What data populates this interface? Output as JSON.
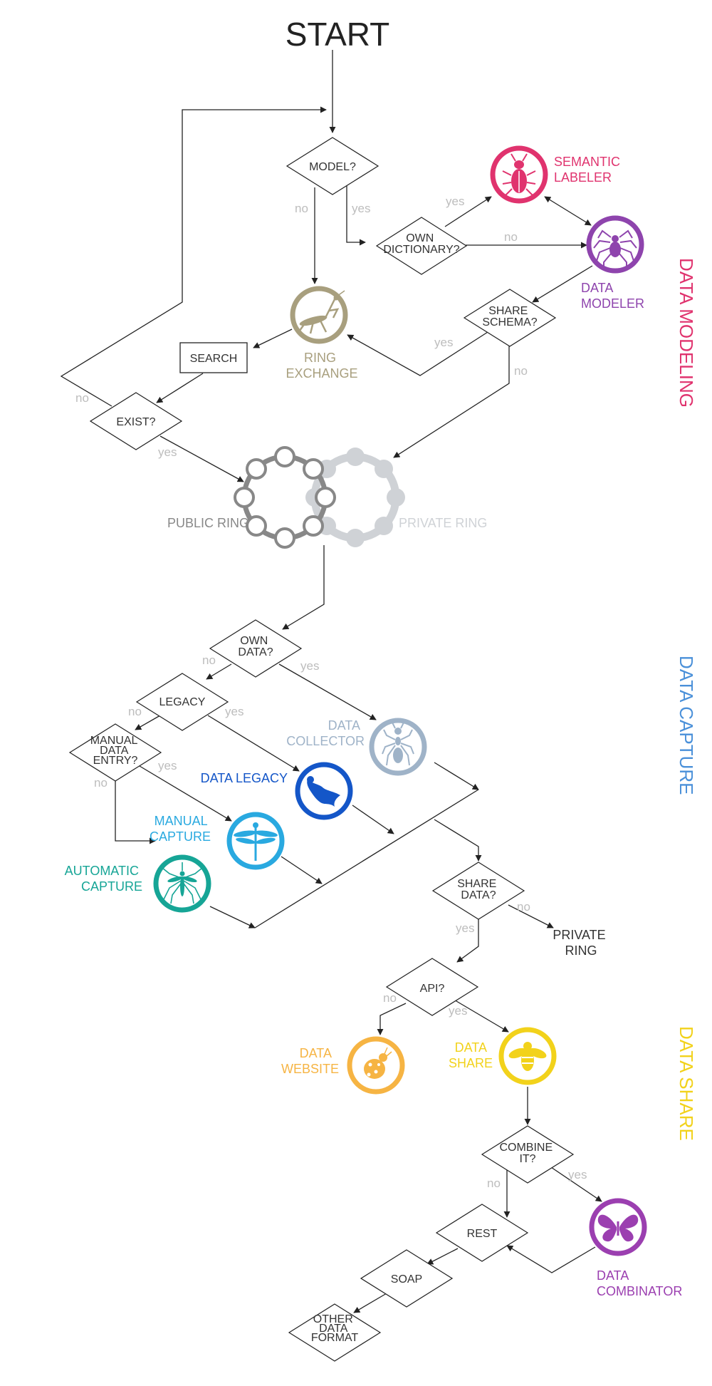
{
  "title": "START",
  "sections": {
    "data_modeling": "DATA MODELING",
    "data_capture": "DATA CAPTURE",
    "data_share": "DATA SHARE"
  },
  "nodes": {
    "model": "MODEL?",
    "own_dictionary": [
      "OWN",
      "DICTIONARY?"
    ],
    "share_schema": [
      "SHARE",
      "SCHEMA?"
    ],
    "search": "SEARCH",
    "exist": "EXIST?",
    "own_data": [
      "OWN",
      "DATA?"
    ],
    "legacy": "LEGACY",
    "manual_data_entry": [
      "MANUAL",
      "DATA",
      "ENTRY?"
    ],
    "share_data": [
      "SHARE",
      "DATA?"
    ],
    "api": "API?",
    "combine_it": [
      "COMBINE",
      "IT?"
    ],
    "rest": "REST",
    "soap": "SOAP",
    "other_data_format": [
      "OTHER",
      "DATA",
      "FORMAT"
    ]
  },
  "roles": {
    "semantic_labeler": {
      "lines": [
        "SEMANTIC",
        "LABELER"
      ],
      "color": "#e0336e",
      "icon": "beetle-icon"
    },
    "data_modeler": {
      "lines": [
        "DATA",
        "MODELER"
      ],
      "color": "#8e44ad",
      "icon": "spider-icon"
    },
    "ring_exchange": {
      "lines": [
        "RING",
        "EXCHANGE"
      ],
      "color": "#a89f7e",
      "icon": "mantis-icon"
    },
    "public_ring": {
      "lines": [
        "PUBLIC RING"
      ],
      "color": "#888888",
      "icon": "public-ring-icon"
    },
    "private_ring": {
      "lines": [
        "PRIVATE RING"
      ],
      "color": "#cfd2d6",
      "icon": "private-ring-icon"
    },
    "data_collector": {
      "lines": [
        "DATA",
        "COLLECTOR"
      ],
      "color": "#9fb3c8",
      "icon": "ant-icon"
    },
    "data_legacy": {
      "lines": [
        "DATA LEGACY"
      ],
      "color": "#1456c8",
      "icon": "bat-icon"
    },
    "manual_capture": {
      "lines": [
        "MANUAL",
        "CAPTURE"
      ],
      "color": "#29a9e0",
      "icon": "dragonfly-icon"
    },
    "automatic_capture": {
      "lines": [
        "AUTOMATIC",
        "CAPTURE"
      ],
      "color": "#16a596",
      "icon": "mosquito-icon"
    },
    "private_ring_share": {
      "lines": [
        "PRIVATE",
        "RING"
      ],
      "color": "#333333"
    },
    "data_website": {
      "lines": [
        "DATA",
        "WEBSITE"
      ],
      "color": "#f6b443",
      "icon": "ladybug-icon"
    },
    "data_share": {
      "lines": [
        "DATA",
        "SHARE"
      ],
      "color": "#f2d21b",
      "icon": "bee-icon"
    },
    "data_combinator": {
      "lines": [
        "DATA",
        "COMBINATOR"
      ],
      "color": "#9b3fb0",
      "icon": "butterfly-icon"
    }
  },
  "edge_labels": {
    "yes": "yes",
    "no": "no"
  },
  "colors": {
    "section_modeling": "#e0336e",
    "section_capture": "#4a90d9",
    "section_share": "#f2d21b",
    "answer_label": "#bdbdbd",
    "line": "#222222"
  }
}
